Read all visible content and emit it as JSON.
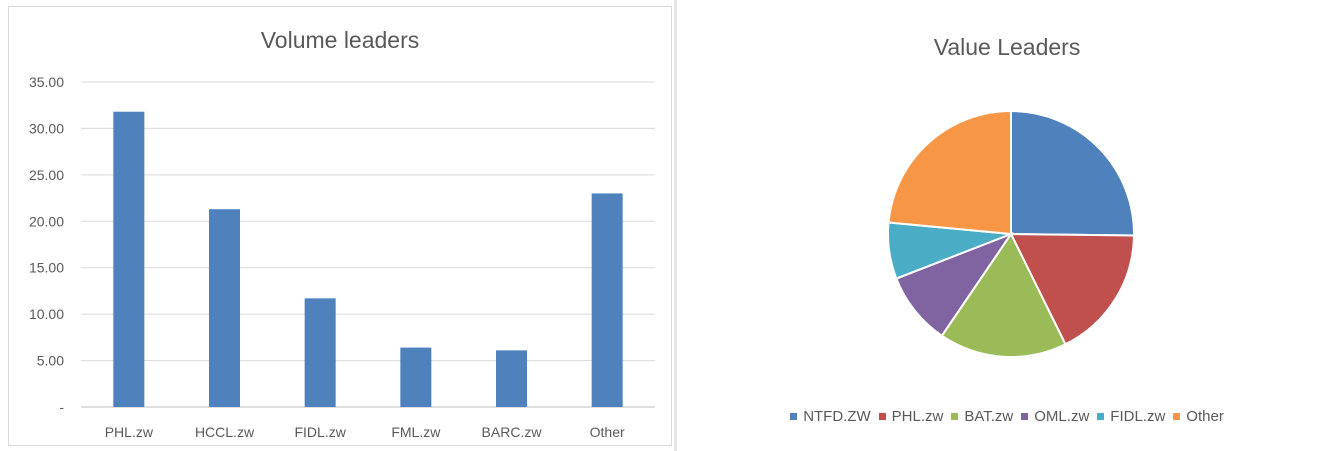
{
  "chart_data": [
    {
      "type": "bar",
      "title": "Volume leaders",
      "categories": [
        "PHL.zw",
        "HCCL.zw",
        "FIDL.zw",
        "FML.zw",
        "BARC.zw",
        "Other"
      ],
      "values": [
        31.8,
        21.3,
        11.7,
        6.4,
        6.1,
        23.0
      ],
      "y_tick_labels": [
        "-",
        "5.00",
        "10.00",
        "15.00",
        "20.00",
        "25.00",
        "30.00",
        "35.00"
      ],
      "ylim": [
        0,
        35
      ],
      "grid": true,
      "color": "#4f81bd"
    },
    {
      "type": "pie",
      "title": "Value Leaders",
      "labels": [
        "NTFD.ZW",
        "PHL.zw",
        "BAT.zw",
        "OML.zw",
        "FIDL.zw",
        "Other"
      ],
      "values": [
        25.2,
        17.5,
        16.8,
        9.6,
        7.4,
        23.5
      ],
      "colors": [
        "#4f81bd",
        "#c0504d",
        "#9bbb59",
        "#8064a2",
        "#4bacc6",
        "#f79646"
      ],
      "legend_position": "bottom"
    }
  ]
}
